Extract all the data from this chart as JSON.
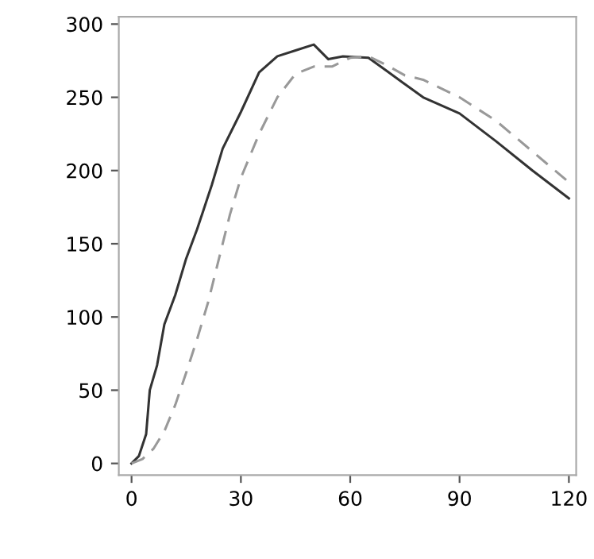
{
  "chart_data": {
    "type": "line",
    "xlim": [
      -3.5,
      122
    ],
    "ylim": [
      -8,
      305
    ],
    "xticks": [
      0,
      30,
      60,
      90,
      120
    ],
    "yticks": [
      0,
      50,
      100,
      150,
      200,
      250,
      300
    ],
    "grid": false,
    "series": [
      {
        "color": "#333333",
        "line_style": "solid",
        "x": [
          0,
          2,
          4,
          5,
          7,
          9,
          12,
          15,
          18,
          22,
          25,
          30,
          35,
          40,
          45,
          50,
          54,
          58,
          65,
          70,
          80,
          90,
          100,
          110,
          120
        ],
        "values": [
          0,
          5,
          20,
          50,
          67,
          95,
          115,
          140,
          160,
          190,
          215,
          240,
          267,
          278,
          282,
          286,
          276,
          278,
          277,
          268,
          250,
          239,
          220,
          200,
          181
        ]
      },
      {
        "color": "#999999",
        "line_style": "dashed",
        "x": [
          0,
          3,
          6,
          9,
          12,
          15,
          18,
          21,
          24,
          27,
          30,
          35,
          40,
          45,
          50,
          55,
          60,
          65,
          70,
          75,
          80,
          90,
          100,
          110,
          120
        ],
        "values": [
          0,
          3,
          10,
          22,
          40,
          62,
          85,
          110,
          140,
          170,
          195,
          225,
          250,
          266,
          271,
          271,
          277,
          278,
          272,
          265,
          262,
          250,
          234,
          213,
          192
        ]
      }
    ]
  }
}
